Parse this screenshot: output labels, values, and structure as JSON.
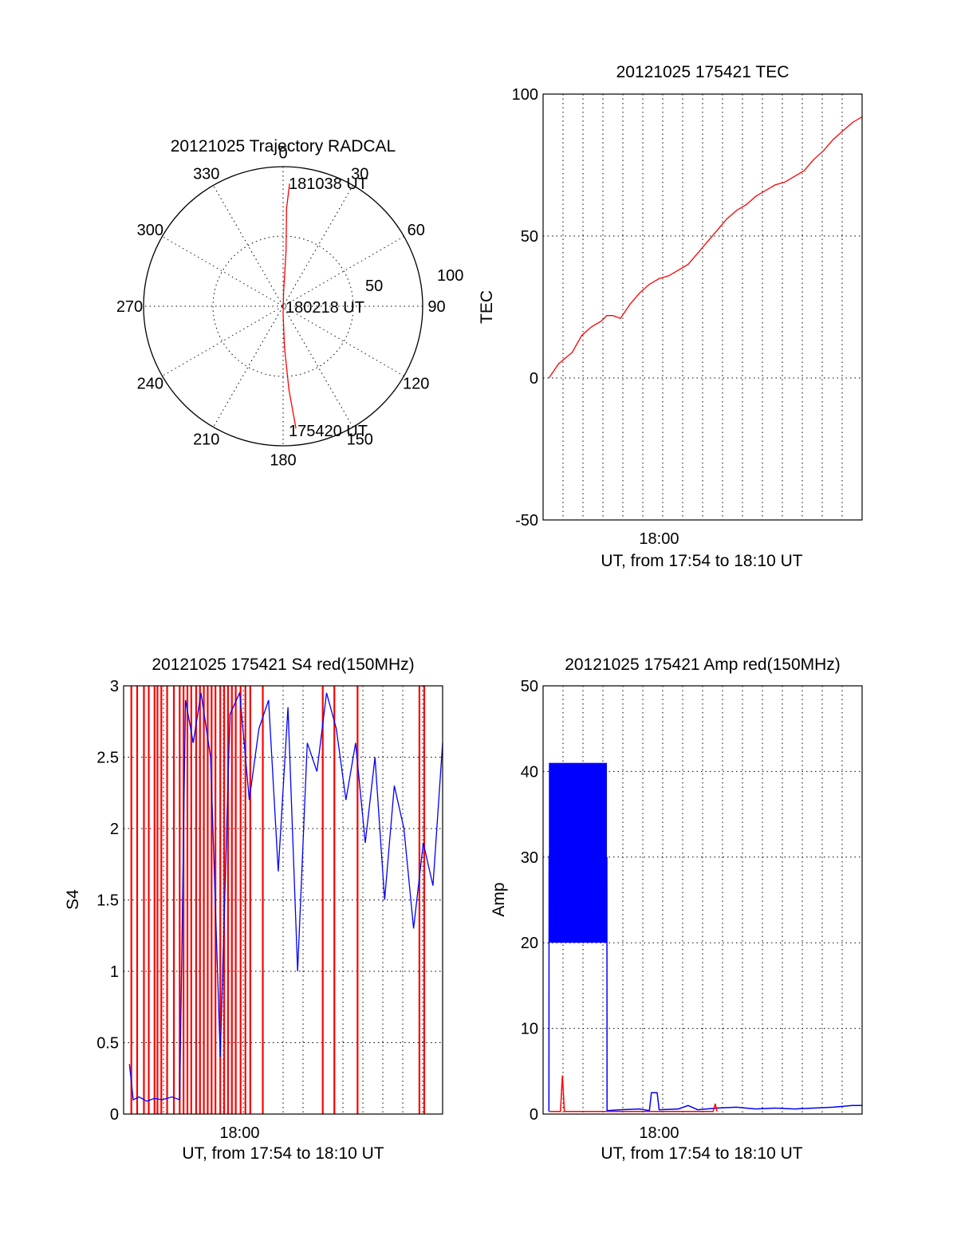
{
  "chart_data": [
    {
      "id": "polar",
      "type": "scatter",
      "subtype": "polar-trajectory",
      "title": "20121025 Trajectory RADCAL",
      "angle_labels": [
        "0",
        "30",
        "60",
        "90",
        "120",
        "150",
        "180",
        "210",
        "240",
        "270",
        "300",
        "330"
      ],
      "radius_labels": [
        "50",
        "100"
      ],
      "rlim": [
        0,
        100
      ],
      "grid": true,
      "series": [
        {
          "color": "#ff0000",
          "points": [
            [
              174,
              88
            ],
            [
              176,
              60
            ],
            [
              178,
              30
            ],
            [
              180,
              5
            ],
            [
              2,
              10
            ],
            [
              3,
              40
            ],
            [
              2,
              70
            ],
            [
              3,
              88
            ]
          ]
        }
      ],
      "annotations": [
        {
          "text": "181038 UT",
          "az": 3,
          "r": 88
        },
        {
          "text": "180218 UT",
          "az": 90,
          "r": 0
        },
        {
          "text": "175420 UT",
          "az": 174,
          "r": 88
        }
      ]
    },
    {
      "id": "tec",
      "type": "line",
      "title": "20121025 175421 TEC",
      "xlabel": "UT, from 17:54 to 18:10 UT",
      "ylabel": "TEC",
      "xlim": [
        0,
        16.5
      ],
      "ylim": [
        -50,
        100
      ],
      "x_ticks": [
        {
          "value": 6,
          "label": "18:00"
        }
      ],
      "y_ticks": [
        {
          "value": -50,
          "label": "-50"
        },
        {
          "value": 0,
          "label": "0"
        },
        {
          "value": 50,
          "label": "50"
        },
        {
          "value": 100,
          "label": "100"
        }
      ],
      "grid": true,
      "series": [
        {
          "color": "#ff0000",
          "x": [
            0.3,
            0.8,
            1.5,
            2.0,
            2.5,
            3.0,
            3.3,
            3.6,
            4.0,
            4.5,
            5.0,
            5.5,
            6.0,
            6.5,
            7.0,
            7.5,
            8.0,
            8.5,
            9.0,
            9.5,
            10.0,
            10.5,
            11.0,
            11.5,
            12.0,
            12.5,
            13.0,
            13.5,
            14.0,
            14.5,
            15.0,
            15.5,
            16.0,
            16.5
          ],
          "y": [
            0,
            5,
            9,
            15,
            18,
            20,
            22,
            22,
            21,
            26,
            30,
            33,
            35,
            36,
            38,
            40,
            44,
            48,
            52,
            56,
            59,
            61,
            64,
            66,
            68,
            69,
            71,
            73,
            77,
            80,
            84,
            87,
            90,
            92
          ]
        }
      ]
    },
    {
      "id": "s4",
      "type": "line",
      "title": "20121025 175421 S4 red(150MHz)",
      "xlabel": "UT, from 17:54 to 18:10 UT",
      "ylabel": "S4",
      "xlim": [
        0,
        16.5
      ],
      "ylim": [
        0,
        3
      ],
      "x_ticks": [
        {
          "value": 6,
          "label": "18:00"
        }
      ],
      "y_ticks": [
        {
          "value": 0,
          "label": "0"
        },
        {
          "value": 0.5,
          "label": "0.5"
        },
        {
          "value": 1,
          "label": "1"
        },
        {
          "value": 1.5,
          "label": "1.5"
        },
        {
          "value": 2,
          "label": "2"
        },
        {
          "value": 2.5,
          "label": "2.5"
        },
        {
          "value": 3,
          "label": "3"
        }
      ],
      "grid": true,
      "series": [
        {
          "color": "#0000ff",
          "x": [
            0.3,
            0.5,
            0.8,
            1.2,
            1.6,
            2.0,
            2.5,
            2.9,
            3.2,
            3.6,
            4.0,
            4.5,
            5.0,
            5.5,
            6.0,
            6.5,
            7.0,
            7.5,
            8.0,
            8.5,
            9.0,
            9.5,
            10.0,
            10.5,
            11.0,
            11.5,
            12.0,
            12.5,
            13.0,
            13.5,
            14.0,
            14.5,
            15.0,
            15.5,
            16.0,
            16.5
          ],
          "y": [
            0.35,
            0.1,
            0.12,
            0.09,
            0.11,
            0.1,
            0.12,
            0.1,
            2.9,
            2.6,
            2.95,
            2.5,
            0.4,
            2.8,
            2.95,
            2.2,
            2.7,
            2.9,
            1.7,
            2.85,
            1.0,
            2.6,
            2.4,
            2.95,
            2.7,
            2.2,
            2.6,
            1.9,
            2.5,
            1.5,
            2.3,
            2.0,
            1.3,
            1.9,
            1.6,
            2.6
          ]
        }
      ],
      "red_spikes_x": [
        0.4,
        0.7,
        1.05,
        1.3,
        1.6,
        1.75,
        1.95,
        2.25,
        2.6,
        2.9,
        3.1,
        3.3,
        3.5,
        3.75,
        3.95,
        4.15,
        4.35,
        4.55,
        4.75,
        5.0,
        5.2,
        5.4,
        5.6,
        5.8,
        6.05,
        6.3,
        6.55,
        7.2,
        10.3,
        10.9,
        12.1,
        15.3,
        15.55
      ]
    },
    {
      "id": "amp",
      "type": "line",
      "title": "20121025 175421 Amp red(150MHz)",
      "xlabel": "UT, from 17:54 to 18:10 UT",
      "ylabel": "Amp",
      "xlim": [
        0,
        16.5
      ],
      "ylim": [
        0,
        50
      ],
      "x_ticks": [
        {
          "value": 6,
          "label": "18:00"
        }
      ],
      "y_ticks": [
        {
          "value": 0,
          "label": "0"
        },
        {
          "value": 10,
          "label": "10"
        },
        {
          "value": 20,
          "label": "20"
        },
        {
          "value": 30,
          "label": "30"
        },
        {
          "value": 40,
          "label": "40"
        },
        {
          "value": 50,
          "label": "50"
        }
      ],
      "grid": true,
      "series": [
        {
          "color": "#0000ff",
          "x": [
            0.3,
            0.31,
            0.5,
            1.0,
            1.5,
            2.0,
            2.5,
            3.0,
            3.3,
            3.31,
            4.0,
            5.0,
            5.5,
            5.6,
            5.9,
            6.0,
            7.0,
            7.5,
            8.0,
            9.0,
            10.0,
            11.0,
            12.0,
            13.0,
            14.0,
            15.0,
            16.0,
            16.5
          ],
          "y": [
            0.3,
            30,
            32,
            31,
            29,
            30,
            31,
            28,
            30,
            0.4,
            0.5,
            0.6,
            0.4,
            2.5,
            2.5,
            0.5,
            0.6,
            1.0,
            0.5,
            0.7,
            0.8,
            0.6,
            0.7,
            0.6,
            0.7,
            0.8,
            1.0,
            1.0
          ],
          "band_x": [
            0.3,
            3.3
          ],
          "band_y": [
            20,
            41
          ]
        },
        {
          "color": "#ff0000",
          "x": [
            0.3,
            0.9,
            1.0,
            1.1,
            2.0,
            3.3,
            8.8,
            8.9,
            9.0
          ],
          "y": [
            0.3,
            0.3,
            4.5,
            0.3,
            0.3,
            0.3,
            0.3,
            1.2,
            0.3
          ]
        }
      ]
    }
  ]
}
